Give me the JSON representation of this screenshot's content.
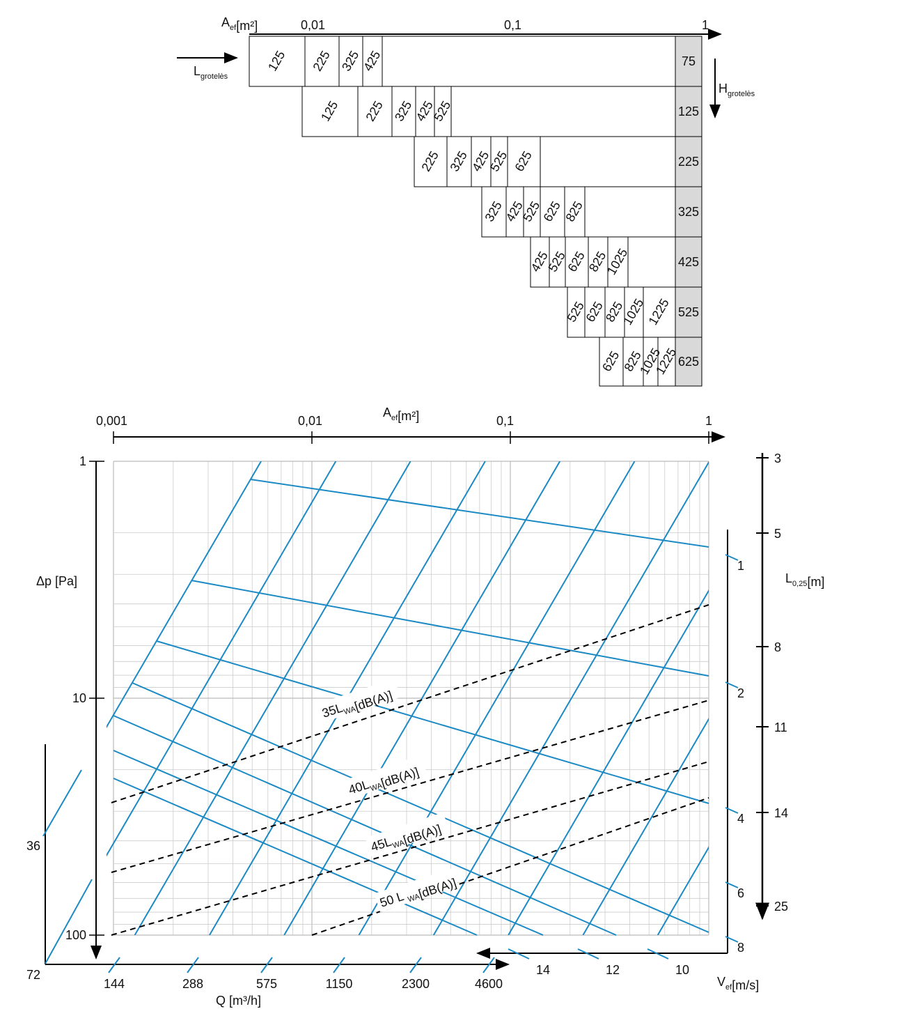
{
  "top": {
    "axis": {
      "symbol": "A",
      "sub": "ef",
      "unit": "[m²]"
    },
    "ticks": [
      "0,01",
      "0,1",
      "1"
    ],
    "length_label": {
      "symbol": "L",
      "sub": "grotelės"
    },
    "height_label": {
      "symbol": "H",
      "sub": "grotelės"
    },
    "rows": [
      {
        "height": "75",
        "widths": [
          "125",
          "225",
          "325",
          "425"
        ]
      },
      {
        "height": "125",
        "widths": [
          "125",
          "225",
          "325",
          "425",
          "525"
        ]
      },
      {
        "height": "225",
        "widths": [
          "225",
          "325",
          "425",
          "525",
          "625"
        ]
      },
      {
        "height": "325",
        "widths": [
          "325",
          "425",
          "525",
          "625",
          "825"
        ]
      },
      {
        "height": "425",
        "widths": [
          "425",
          "525",
          "625",
          "825",
          "1025"
        ]
      },
      {
        "height": "525",
        "widths": [
          "525",
          "625",
          "825",
          "1025",
          "1225"
        ]
      },
      {
        "height": "625",
        "widths": [
          "625",
          "825",
          "1025",
          "1225"
        ]
      }
    ]
  },
  "nomogram": {
    "area_axis": {
      "symbol": "A",
      "sub": "ef",
      "unit": "[m²]"
    },
    "area_ticks": [
      "0,001",
      "0,01",
      "0,1",
      "1"
    ],
    "pressure_label": "Δp [Pa]",
    "pressure_ticks": [
      "1",
      "10",
      "100"
    ],
    "flow_label": "Q [m³/h]",
    "flow_ticks": [
      "144",
      "288",
      "575",
      "1150",
      "2300",
      "4600"
    ],
    "left_scale_ticks": [
      "36",
      "72"
    ],
    "velocity_label": {
      "symbol": "V",
      "sub": "ef",
      "unit": "[m/s]"
    },
    "velocity_ticks": [
      "14",
      "12",
      "10"
    ],
    "inner_scale_ticks": [
      "1",
      "2",
      "4",
      "6",
      "8"
    ],
    "throw_label": {
      "symbol": "L",
      "sub": "0,25",
      "unit": "[m]"
    },
    "throw_ticks": [
      "3",
      "5",
      "8",
      "11",
      "14",
      "25"
    ],
    "noise_labels": [
      {
        "pre": "35L",
        "sub": "WA",
        "post": "[dB(A)]"
      },
      {
        "pre": "40L",
        "sub": "WA",
        "post": "[dB(A)]"
      },
      {
        "pre": "45L",
        "sub": "WA",
        "post": "[dB(A)]"
      },
      {
        "pre": "50 L ",
        "sub": "WA",
        "post": "[dB(A)]"
      }
    ]
  }
}
